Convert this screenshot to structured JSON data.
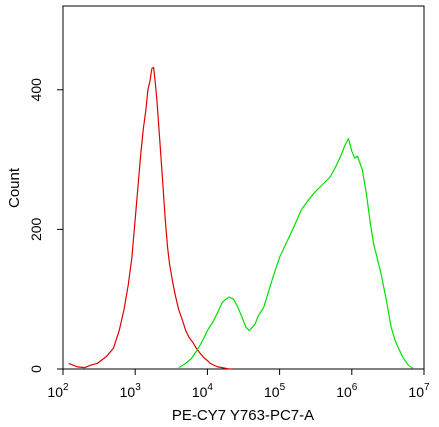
{
  "chart_data": {
    "type": "line",
    "title": "",
    "xlabel": "PE-CY7 Y763-PC7-A",
    "ylabel": "Count",
    "x_scale": "log",
    "xlim": [
      100,
      10000000
    ],
    "ylim": [
      0,
      520
    ],
    "x_ticks": [
      {
        "value": 100,
        "base": "10",
        "exp": "2"
      },
      {
        "value": 1000,
        "base": "10",
        "exp": "3"
      },
      {
        "value": 10000,
        "base": "10",
        "exp": "4"
      },
      {
        "value": 100000,
        "base": "10",
        "exp": "5"
      },
      {
        "value": 1000000,
        "base": "10",
        "exp": "6"
      },
      {
        "value": 10000000,
        "base": "10",
        "exp": "7"
      }
    ],
    "y_ticks": [
      {
        "value": 0,
        "label": "0"
      },
      {
        "value": 200,
        "label": "200"
      },
      {
        "value": 400,
        "label": "400"
      }
    ],
    "grid": false,
    "legend": "none",
    "series": [
      {
        "color": "#e00000",
        "x": [
          120,
          160,
          200,
          250,
          300,
          400,
          500,
          600,
          700,
          800,
          900,
          1000,
          1100,
          1200,
          1300,
          1400,
          1500,
          1600,
          1700,
          1800,
          1900,
          2000,
          2200,
          2400,
          2600,
          2800,
          3000,
          3300,
          3600,
          4000,
          4500,
          5000,
          5600,
          6300,
          7000,
          8000,
          9000,
          10000,
          11000,
          12500,
          14000,
          16000,
          18000,
          20000,
          22000
        ],
        "values": [
          8,
          3,
          2,
          6,
          8,
          18,
          30,
          55,
          85,
          120,
          160,
          215,
          265,
          310,
          345,
          370,
          400,
          412,
          430,
          432,
          410,
          385,
          325,
          268,
          215,
          175,
          150,
          125,
          105,
          85,
          70,
          55,
          45,
          38,
          30,
          22,
          16,
          12,
          8,
          5,
          3,
          2,
          1,
          0,
          0
        ]
      },
      {
        "color": "#00e000",
        "x": [
          4000,
          5000,
          6000,
          7000,
          8000,
          9000,
          10000,
          12000,
          14000,
          16000,
          18000,
          20000,
          23000,
          26000,
          30000,
          34000,
          38000,
          42000,
          46000,
          50000,
          60000,
          70000,
          80000,
          100000,
          130000,
          160000,
          200000,
          250000,
          300000,
          400000,
          500000,
          600000,
          700000,
          800000,
          900000,
          1000000,
          1100000,
          1200000,
          1400000,
          1600000,
          1800000,
          2000000,
          2500000,
          3000000,
          3500000,
          4000000,
          5000000,
          6000000,
          7000000
        ],
        "values": [
          2,
          8,
          15,
          25,
          35,
          45,
          55,
          68,
          82,
          95,
          100,
          103,
          100,
          90,
          75,
          60,
          55,
          60,
          65,
          75,
          88,
          110,
          130,
          160,
          185,
          205,
          228,
          242,
          252,
          265,
          275,
          290,
          305,
          320,
          330,
          312,
          302,
          305,
          285,
          250,
          210,
          180,
          140,
          100,
          60,
          40,
          18,
          6,
          1
        ]
      }
    ]
  }
}
